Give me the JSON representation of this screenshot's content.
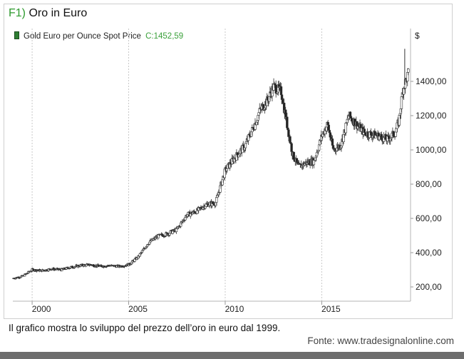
{
  "header": {
    "figure_number": "F1)",
    "title": "Oro in Euro"
  },
  "legend": {
    "series_label": "Gold Euro per Ounce Spot Price",
    "close_label": "C:1452,59"
  },
  "caption": "Il grafico mostra lo sviluppo del prezzo dell’oro in euro dal 1999.",
  "source": "Fonte: www.tradesignalonline.com",
  "colors": {
    "title_accent": "#2e9a2e",
    "candle_up": "#ffffff",
    "candle_down": "#222222",
    "grid": "#c8c8c8",
    "axis": "#999999"
  },
  "chart_data": {
    "type": "line",
    "style": "candlestick",
    "y_unit": "$",
    "y_ticks": [
      "200,00",
      "400,00",
      "600,00",
      "800,00",
      "1000,00",
      "1200,00",
      "1400,00"
    ],
    "y_tick_values": [
      200,
      400,
      600,
      800,
      1000,
      1200,
      1400
    ],
    "x_ticks": [
      "2000",
      "2005",
      "2010",
      "2015"
    ],
    "x_tick_values": [
      2000,
      2005,
      2010,
      2015
    ],
    "xlim": [
      1999.0,
      2019.6
    ],
    "ylim": [
      120,
      1750
    ],
    "grid": "vertical at year ticks",
    "last_close": 1452.59,
    "series": [
      {
        "name": "Gold Euro per Ounce Spot Price",
        "x": [
          1999.0,
          1999.5,
          2000.0,
          2000.5,
          2001.0,
          2001.5,
          2002.0,
          2002.5,
          2003.0,
          2003.5,
          2004.0,
          2004.5,
          2005.0,
          2005.5,
          2006.0,
          2006.5,
          2007.0,
          2007.5,
          2008.0,
          2008.5,
          2009.0,
          2009.5,
          2010.0,
          2010.5,
          2011.0,
          2011.5,
          2011.8,
          2012.2,
          2012.5,
          2012.9,
          2013.2,
          2013.5,
          2013.8,
          2014.2,
          2014.6,
          2015.0,
          2015.3,
          2015.6,
          2016.0,
          2016.4,
          2016.8,
          2017.2,
          2017.6,
          2018.0,
          2018.4,
          2018.8,
          2019.0,
          2019.2,
          2019.4,
          2019.5
        ],
        "y": [
          250,
          262,
          300,
          295,
          305,
          300,
          315,
          325,
          330,
          320,
          325,
          320,
          330,
          375,
          455,
          495,
          510,
          535,
          620,
          640,
          680,
          690,
          880,
          955,
          1020,
          1140,
          1230,
          1290,
          1370,
          1340,
          1150,
          970,
          900,
          925,
          935,
          1080,
          1150,
          1000,
          1030,
          1200,
          1150,
          1100,
          1090,
          1080,
          1060,
          1100,
          1170,
          1350,
          1420,
          1452
        ]
      }
    ]
  }
}
